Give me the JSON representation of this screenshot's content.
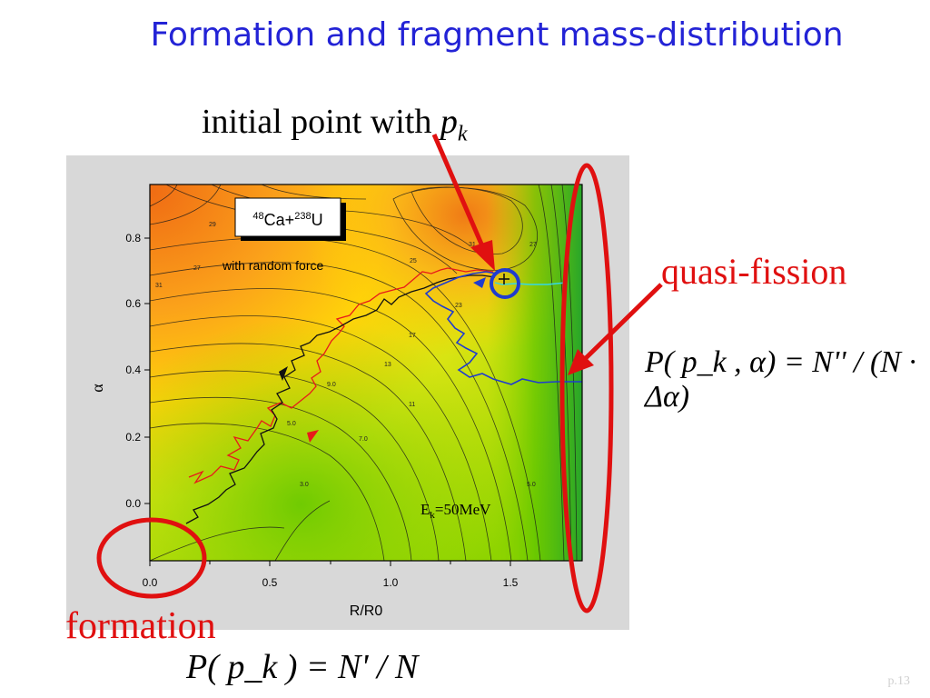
{
  "slide": {
    "title": "Formation and fragment mass-distribution",
    "initial_label": "initial point with ",
    "initial_var": "p",
    "initial_sub": "k",
    "quasi_fission_label": "quasi-fission",
    "formation_label": "formation",
    "page_number": "p.13"
  },
  "equations": {
    "eq1": "P( p_k , α) = N'' / (N · Δα)",
    "eq2": "P( p_k ) = N' / N"
  },
  "plot": {
    "reaction_pre1": "48",
    "reaction_a": "Ca+",
    "reaction_pre2": "238",
    "reaction_b": "U",
    "random_force_label": "with random force",
    "energy_label_E": "E",
    "energy_label_sub": "k",
    "energy_label_val": "=50MeV",
    "contour_labels": [
      "29",
      "27",
      "31",
      "25",
      "31",
      "27",
      "23",
      "17",
      "13",
      "9.0",
      "11",
      "7.0",
      "5.0",
      "3.0",
      "5.0"
    ]
  },
  "chart_data": {
    "type": "contour",
    "xlabel": "R/R0",
    "ylabel": "α",
    "xlim": [
      0.0,
      1.8
    ],
    "ylim": [
      -0.17,
      0.95
    ],
    "x_ticks": [
      "0.0",
      "0.5",
      "1.0",
      "1.5"
    ],
    "y_ticks": [
      "0.0",
      "0.2",
      "0.4",
      "0.6",
      "0.8"
    ],
    "colors": {
      "high": "#f07a16",
      "mid": "#ffd400",
      "low": "#7cd200",
      "deep": "#2fae2a",
      "traj_red": "#e81a1a",
      "traj_black": "#111111",
      "traj_blue": "#1f3ccf",
      "highlight": "#e01010",
      "circle_blue": "#1f3ccf"
    }
  }
}
